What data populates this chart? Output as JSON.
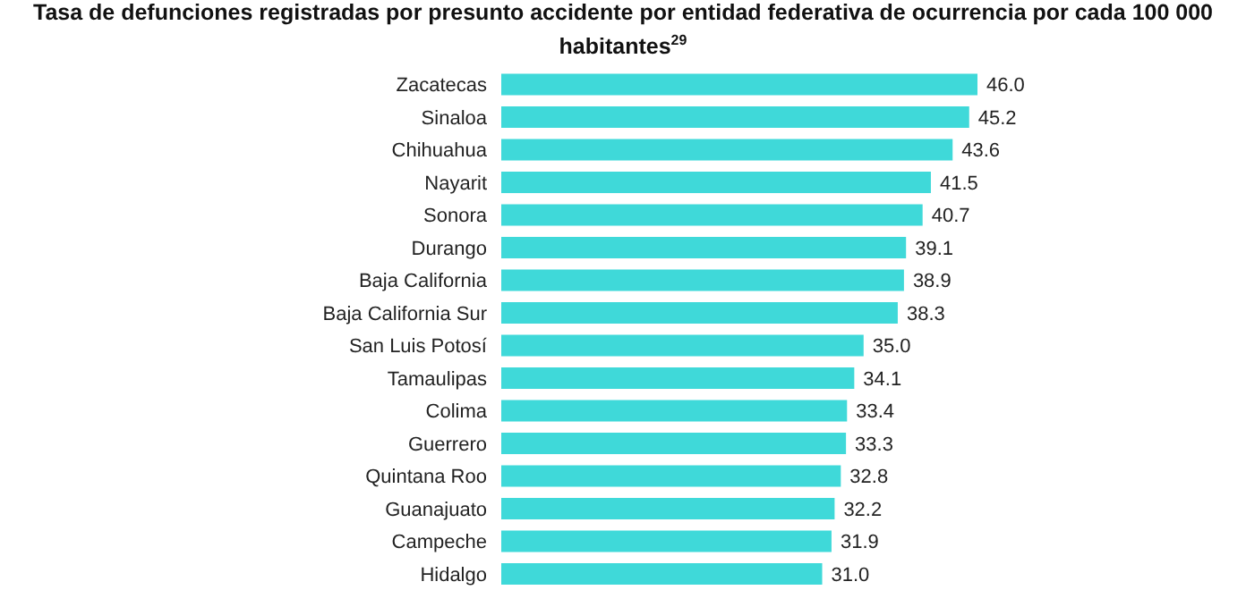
{
  "chart_data": {
    "type": "bar",
    "orientation": "horizontal",
    "title": "Tasa de defunciones registradas por presunto accidente por entidad federativa de ocurrencia por cada 100 000 habitantes$^{29}$",
    "categories": [
      "Zacatecas",
      "Sinaloa",
      "Chihuahua",
      "Nayarit",
      "Sonora",
      "Durango",
      "Baja California",
      "Baja California Sur",
      "San Luis Potosí",
      "Tamaulipas",
      "Colima",
      "Guerrero",
      "Quintana Roo",
      "Guanajuato",
      "Campeche",
      "Hidalgo"
    ],
    "values": [
      46.0,
      45.2,
      43.6,
      41.5,
      40.7,
      39.1,
      38.9,
      38.3,
      35.0,
      34.1,
      33.4,
      33.3,
      32.8,
      32.2,
      31.9,
      31.0
    ],
    "value_labels": [
      "46.0",
      "45.2",
      "43.6",
      "41.5",
      "40.7",
      "39.1",
      "38.9",
      "38.3",
      "35.0",
      "34.1",
      "33.4",
      "33.3",
      "32.8",
      "32.2",
      "31.9",
      "31.0"
    ],
    "color": "#3fd9d9"
  }
}
